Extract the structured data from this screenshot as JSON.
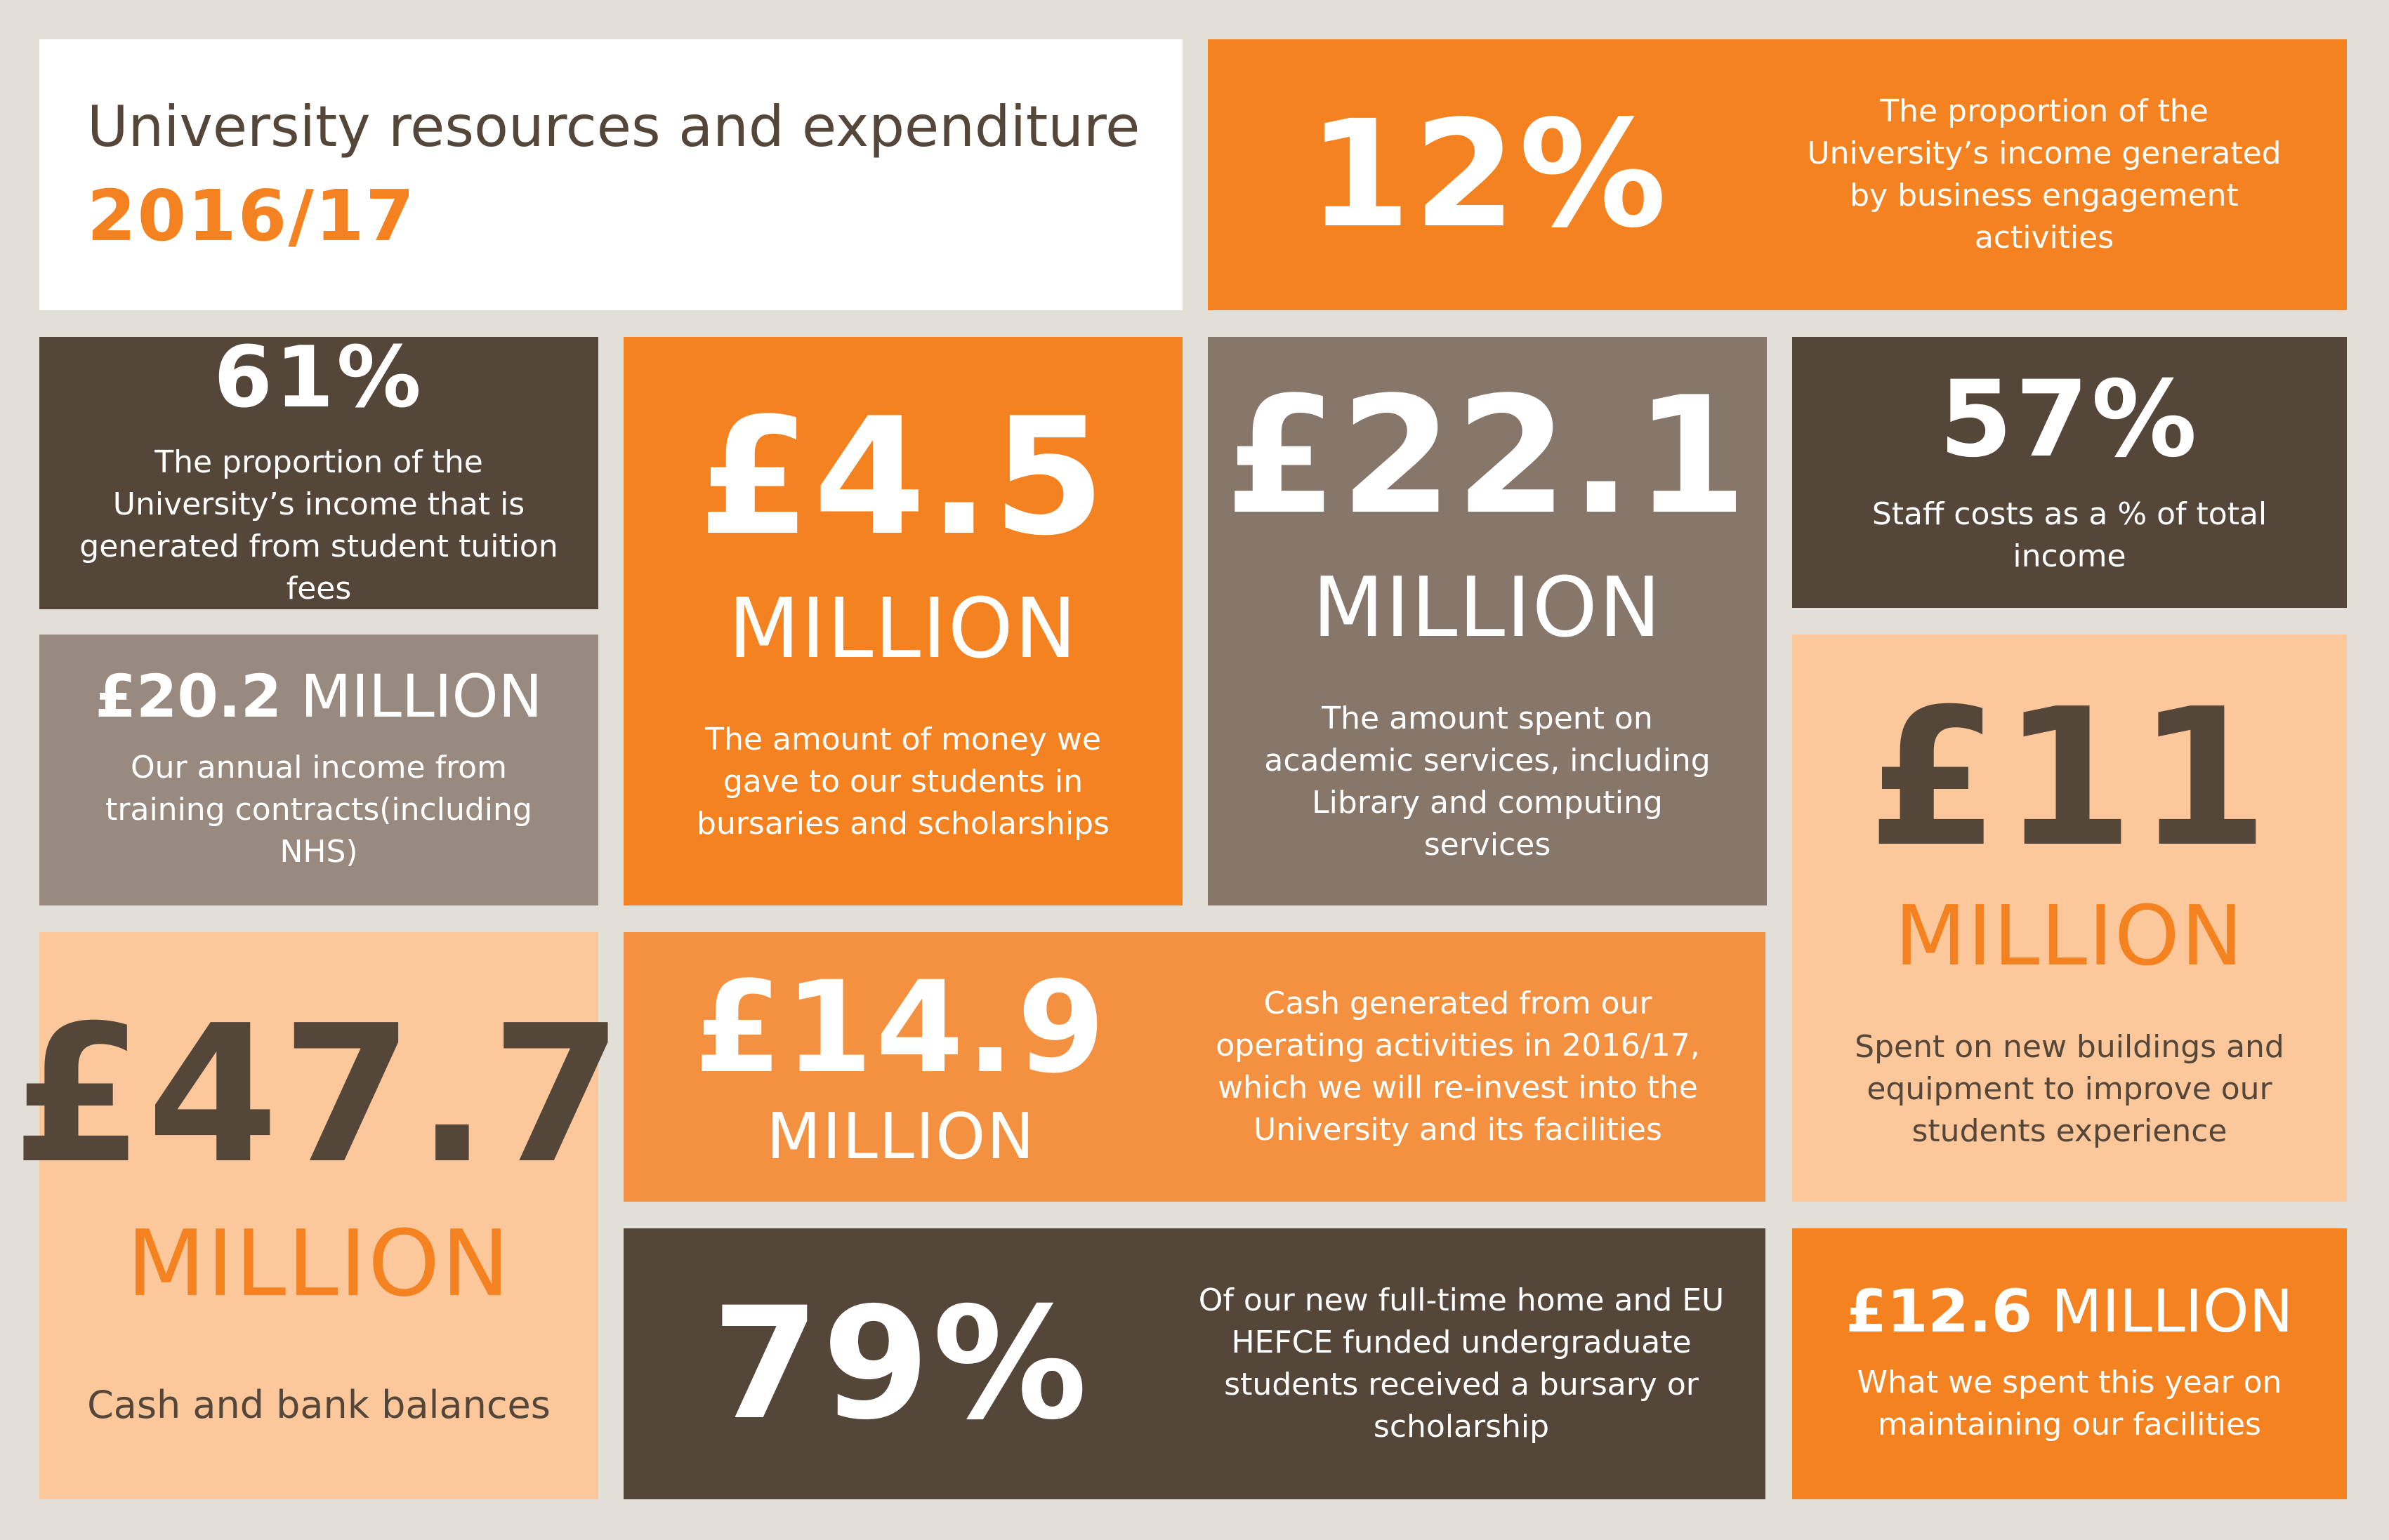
{
  "header": {
    "title": "University resources and expenditure",
    "year": "2016/17"
  },
  "stats": {
    "business": {
      "figure": "12%",
      "text": "The proportion of the University’s income generated by business engagement activities"
    },
    "tuition": {
      "figure": "61%",
      "text": "The proportion of the University’s income that is generated from student tuition fees"
    },
    "bursaries": {
      "figure": "£4.5",
      "unit": "MILLION",
      "text": "The amount of money we gave to our students in bursaries and scholarships"
    },
    "academic": {
      "figure": "£22.1",
      "unit": "MILLION",
      "text": "The amount spent on academic services, including Library and computing services"
    },
    "staff": {
      "figure": "57%",
      "text": "Staff costs as a % of total income"
    },
    "training": {
      "figure": "£20.2",
      "unit": "MILLION",
      "text": "Our annual income from training contracts(including NHS)"
    },
    "buildings": {
      "figure": "£11",
      "unit": "MILLION",
      "text": "Spent on new buildings and equipment to improve our students experience"
    },
    "cash_balance": {
      "figure": "£47.7",
      "unit": "MILLION",
      "text": "Cash and bank balances"
    },
    "cash_generated": {
      "figure": "£14.9",
      "unit": "MILLION",
      "text": "Cash generated from our operating activities in 2016/17, which we will re-invest into the University and its facilities"
    },
    "scholarship_pct": {
      "figure": "79%",
      "text": "Of our new full-time home and EU HEFCE funded undergraduate students received a bursary or scholarship"
    },
    "maintenance": {
      "figure": "£12.6",
      "unit": "MILLION",
      "text": "What we spent this year on maintaining our facilities"
    }
  },
  "colors": {
    "background": "#e2ded8",
    "dark_brown": "#55463a",
    "taupe": "#87766a",
    "grey_brown": "#988a7e",
    "orange": "#f58220",
    "light_orange": "#f39140",
    "peach": "#fcc79a"
  }
}
